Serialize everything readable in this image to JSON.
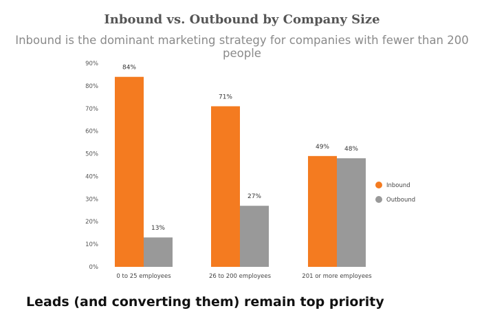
{
  "chart_data": {
    "type": "bar",
    "title": "Inbound vs. Outbound by Company Size",
    "subtitle": "Inbound is the dominant marketing strategy for companies with fewer than 200 people",
    "categories": [
      "0 to 25 employees",
      "26 to 200 employees",
      "201 or more employees"
    ],
    "series": [
      {
        "name": "Inbound",
        "values": [
          84,
          71,
          49
        ],
        "color": "#f47b20"
      },
      {
        "name": "Outbound",
        "values": [
          13,
          27,
          48
        ],
        "color": "#999999"
      }
    ],
    "ylim": [
      0,
      90
    ],
    "yticks": [
      0,
      10,
      20,
      30,
      40,
      50,
      60,
      70,
      80,
      90
    ],
    "value_suffix": "%",
    "grid": false,
    "legend_position": "right"
  },
  "section": {
    "heading": "Leads (and converting them) remain top priority"
  }
}
